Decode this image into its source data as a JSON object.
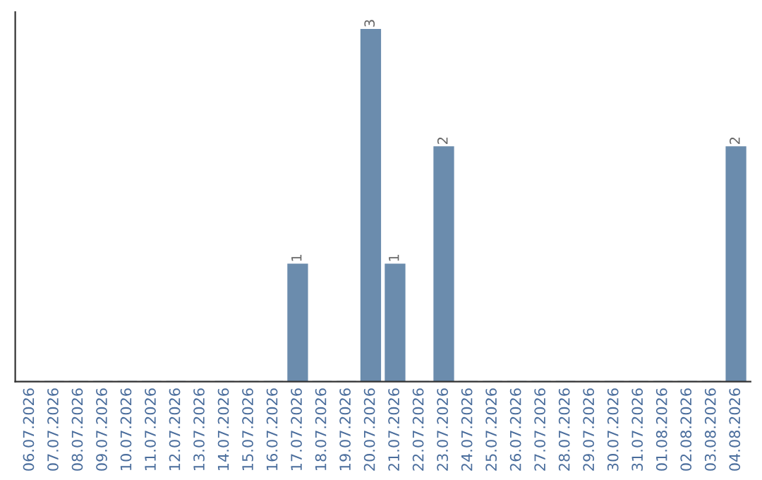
{
  "chart_data": {
    "type": "bar",
    "categories": [
      "06.07.2026",
      "07.07.2026",
      "08.07.2026",
      "09.07.2026",
      "10.07.2026",
      "11.07.2026",
      "12.07.2026",
      "13.07.2026",
      "14.07.2026",
      "15.07.2026",
      "16.07.2026",
      "17.07.2026",
      "18.07.2026",
      "19.07.2026",
      "20.07.2026",
      "21.07.2026",
      "22.07.2026",
      "23.07.2026",
      "24.07.2026",
      "25.07.2026",
      "26.07.2026",
      "27.07.2026",
      "28.07.2026",
      "29.07.2026",
      "30.07.2026",
      "31.07.2026",
      "01.08.2026",
      "02.08.2026",
      "03.08.2026",
      "04.08.2026"
    ],
    "values": [
      0,
      0,
      0,
      0,
      0,
      0,
      0,
      0,
      0,
      0,
      0,
      1,
      0,
      0,
      3,
      1,
      0,
      2,
      0,
      0,
      0,
      0,
      0,
      0,
      0,
      0,
      0,
      0,
      0,
      2
    ],
    "value_labels": [
      null,
      null,
      null,
      null,
      null,
      null,
      null,
      null,
      null,
      null,
      null,
      "1",
      null,
      null,
      "3",
      "1",
      null,
      "2",
      null,
      null,
      null,
      null,
      null,
      null,
      null,
      null,
      null,
      null,
      null,
      "2"
    ],
    "color": "#6b8cad",
    "ylim": [
      0,
      3.15
    ],
    "tick_labels": "x",
    "grid": false,
    "legend": false
  }
}
